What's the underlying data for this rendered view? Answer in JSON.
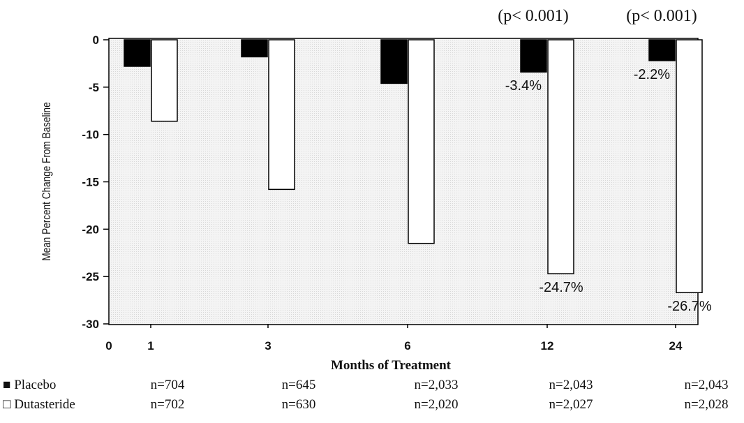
{
  "chart_data": {
    "type": "bar",
    "categories": [
      "1",
      "3",
      "6",
      "12",
      "24"
    ],
    "xlabel": "Months of Treatment",
    "ylabel": "Mean Percent Change From Baseline",
    "ylim": [
      -30,
      0
    ],
    "yticks": [
      "0",
      "-5",
      "-10",
      "-15",
      "-20",
      "-25",
      "-30"
    ],
    "x_origin_label": "0",
    "grid": false,
    "series": [
      {
        "name": "Placebo",
        "legend_label": "■ Placebo",
        "color": "#000000",
        "values": [
          -2.8,
          -1.8,
          -4.6,
          -3.4,
          -2.2
        ],
        "n": [
          "n=704",
          "n=645",
          "n=2,033",
          "n=2,043",
          "n=2,043"
        ]
      },
      {
        "name": "Dutasteride",
        "legend_label": "□ Dutasteride",
        "color": "#ffffff",
        "values": [
          -8.6,
          -15.8,
          -21.5,
          -24.7,
          -26.7
        ],
        "n": [
          "n=702",
          "n=630",
          "n=2,020",
          "n=2,027",
          "n=2,028"
        ]
      }
    ],
    "data_labels": {
      "placebo": [
        "",
        "",
        "",
        "-3.4%",
        "-2.2%"
      ],
      "dutasteride": [
        "",
        "",
        "",
        "-24.7%",
        "-26.7%"
      ]
    },
    "p_values": [
      "",
      "",
      "",
      "(p< 0.001)",
      "(p< 0.001)"
    ]
  }
}
